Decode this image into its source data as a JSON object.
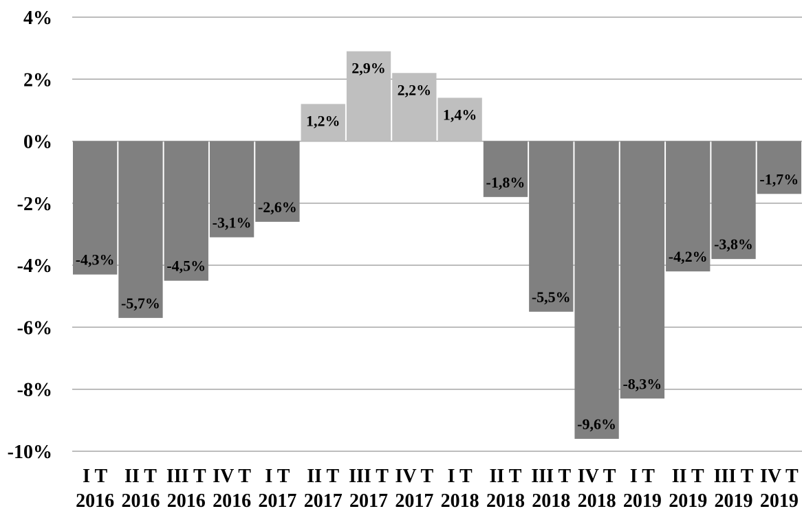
{
  "chart_data": {
    "type": "bar",
    "title": "",
    "xlabel": "",
    "ylabel": "",
    "ylim": [
      -10,
      4
    ],
    "yticks": [
      4,
      2,
      0,
      -2,
      -4,
      -6,
      -8,
      -10
    ],
    "ytick_labels": [
      "4%",
      "2%",
      "0%",
      "-2%",
      "-4%",
      "-6%",
      "-8%",
      "-10%"
    ],
    "grid": true,
    "legend": "none",
    "categories": [
      {
        "line1": "I T",
        "line2": "2016"
      },
      {
        "line1": "II T",
        "line2": "2016"
      },
      {
        "line1": "III T",
        "line2": "2016"
      },
      {
        "line1": "IV T",
        "line2": "2016"
      },
      {
        "line1": "I T",
        "line2": "2017"
      },
      {
        "line1": "II T",
        "line2": "2017"
      },
      {
        "line1": "III T",
        "line2": "2017"
      },
      {
        "line1": "IV T",
        "line2": "2017"
      },
      {
        "line1": "I T",
        "line2": "2018"
      },
      {
        "line1": "II T",
        "line2": "2018"
      },
      {
        "line1": "III T",
        "line2": "2018"
      },
      {
        "line1": "IV T",
        "line2": "2018"
      },
      {
        "line1": "I T",
        "line2": "2019"
      },
      {
        "line1": "II T",
        "line2": "2019"
      },
      {
        "line1": "III T",
        "line2": "2019"
      },
      {
        "line1": "IV T",
        "line2": "2019"
      }
    ],
    "values": [
      -4.3,
      -5.7,
      -4.5,
      -3.1,
      -2.6,
      1.2,
      2.9,
      2.2,
      1.4,
      -1.8,
      -5.5,
      -9.6,
      -8.3,
      -4.2,
      -3.8,
      -1.7
    ],
    "data_labels": [
      "-4,3%",
      "-5,7%",
      "-4,5%",
      "-3,1%",
      "-2,6%",
      "1,2%",
      "2,9%",
      "2,2%",
      "1,4%",
      "-1,8%",
      "-5,5%",
      "-9,6%",
      "-8,3%",
      "-4,2%",
      "-3,8%",
      "-1,7%"
    ],
    "colors": {
      "negative": "#808080",
      "positive": "#bfbfbf",
      "grid": "#a6a6a6",
      "text": "#000000"
    }
  }
}
